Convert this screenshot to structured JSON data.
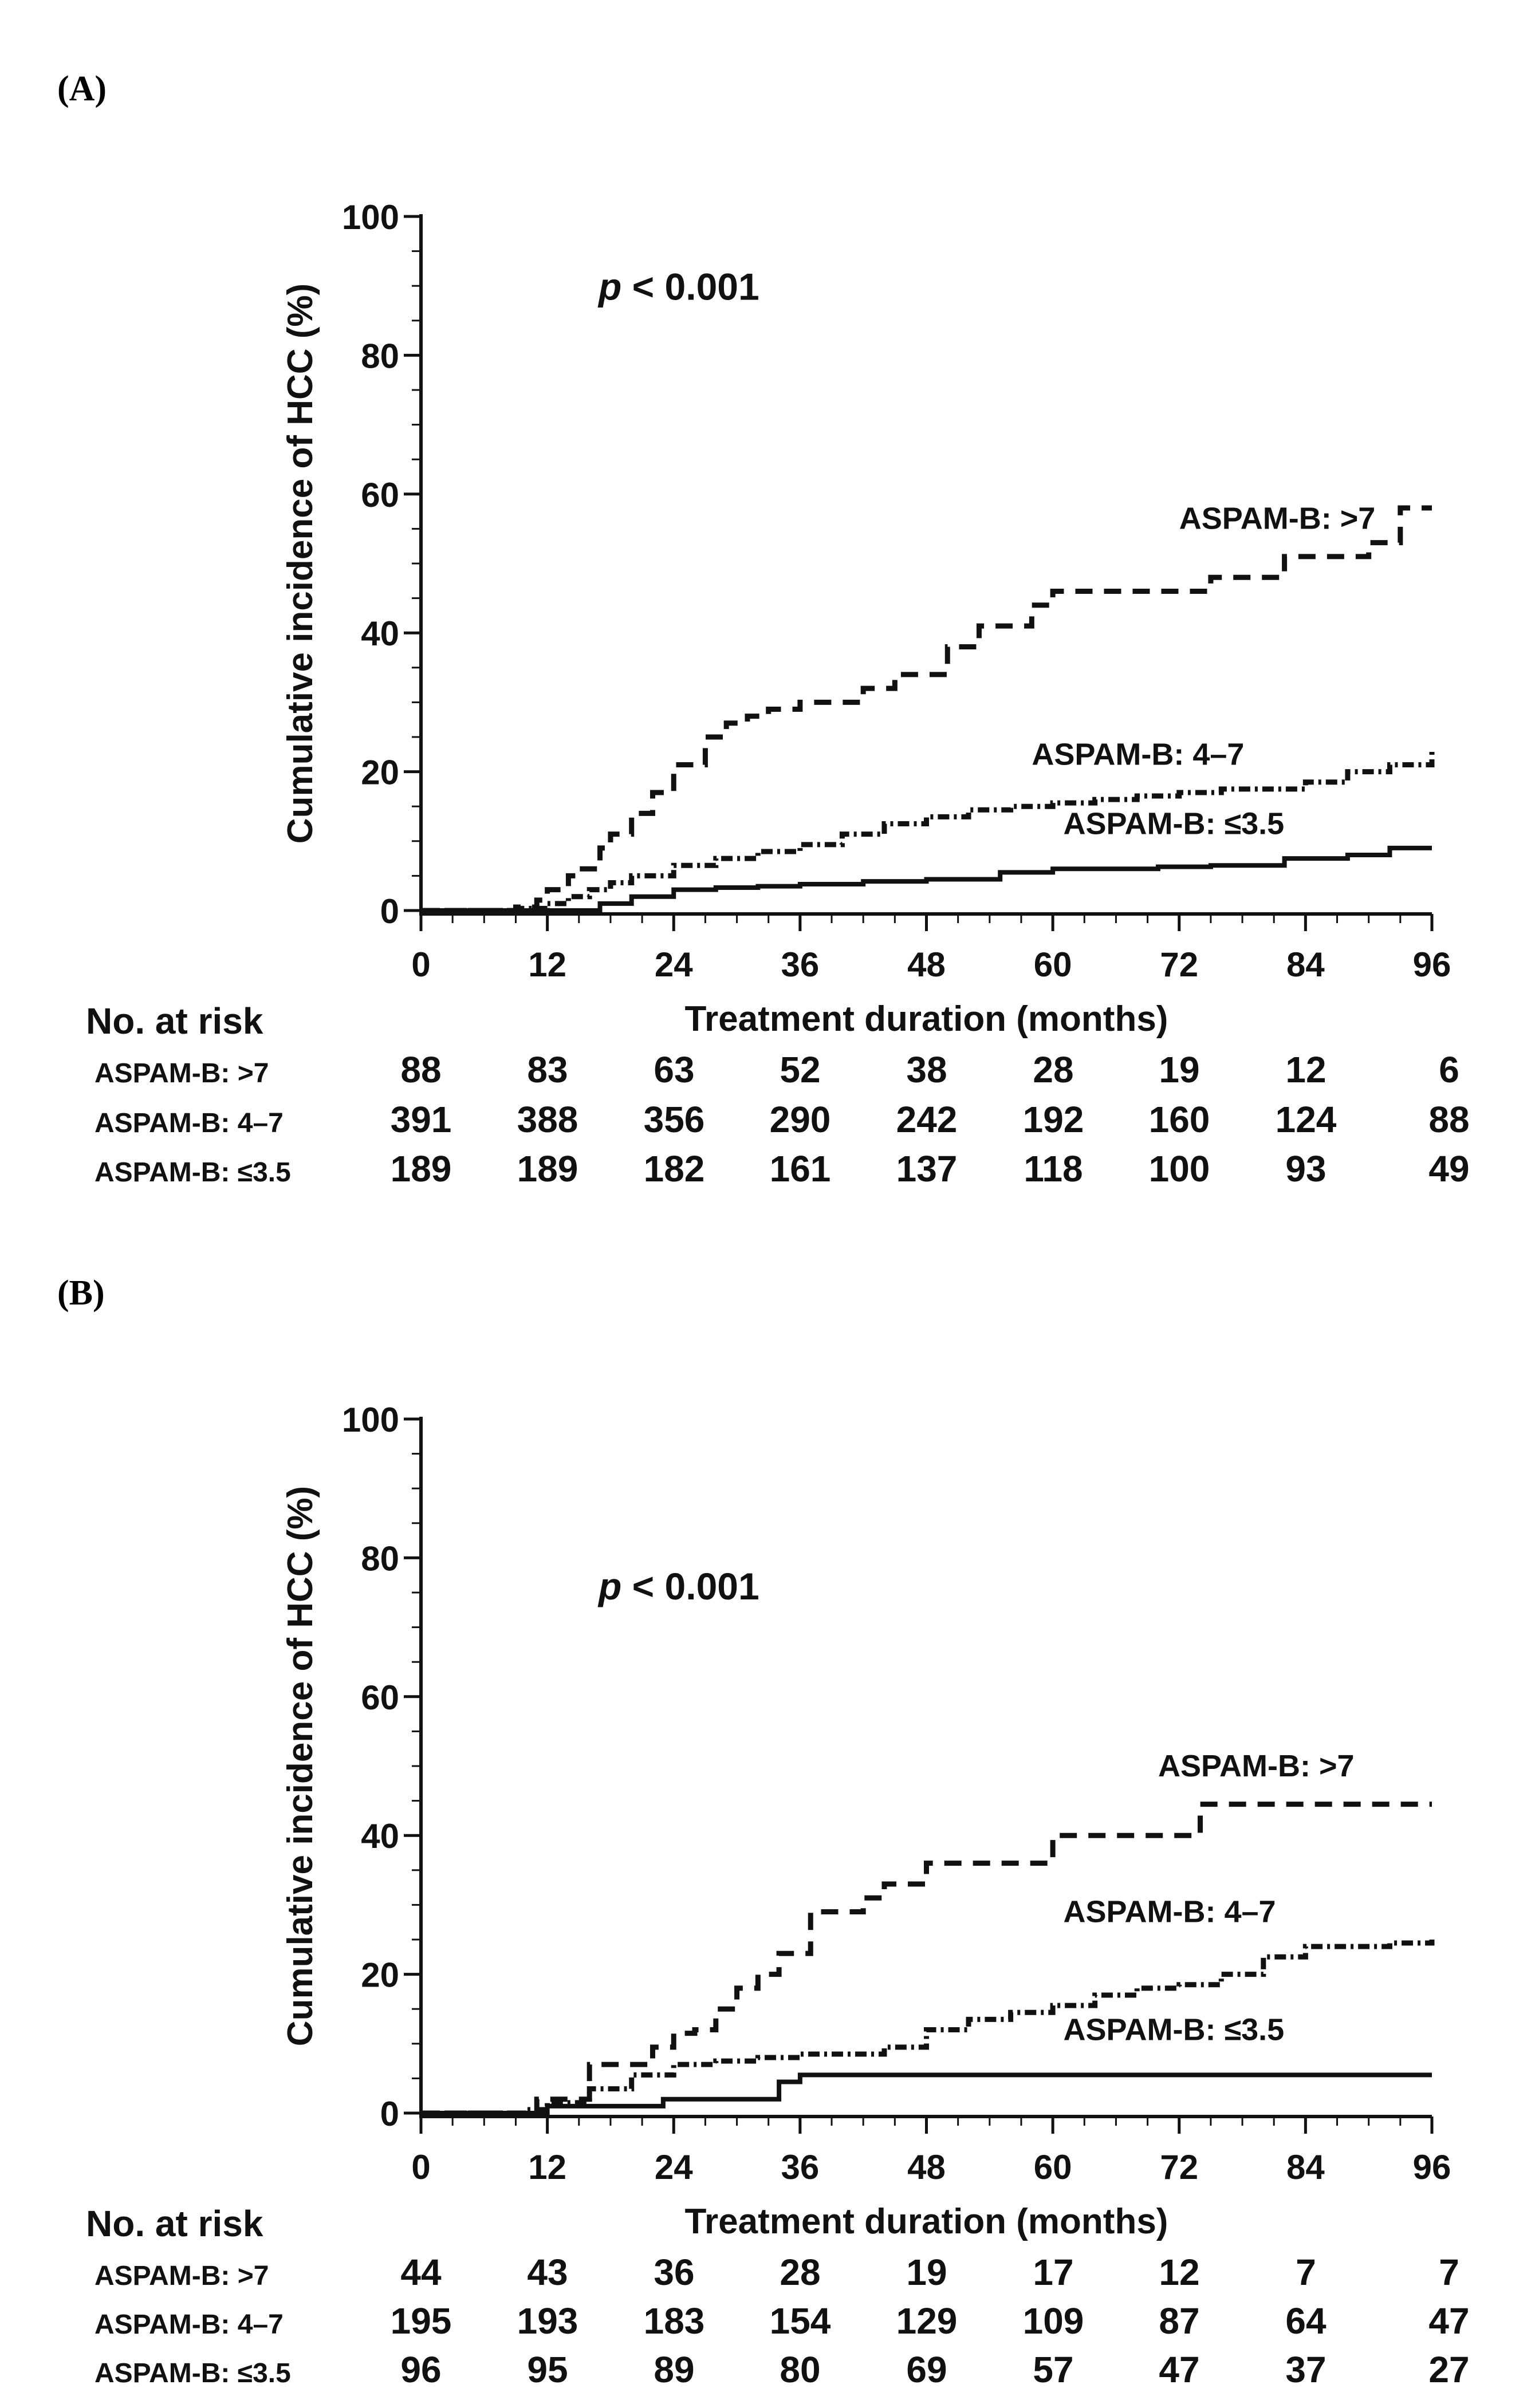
{
  "figure": {
    "panels": [
      "(A)",
      "(B)"
    ]
  },
  "chart_data": [
    {
      "panel": "(A)",
      "type": "line",
      "subtype": "kaplan-meier cumulative incidence",
      "annotation": "p < 0.001",
      "annotation_italic_part": "p",
      "annotation_rest": " < 0.001",
      "xlabel": "Treatment duration (months)",
      "ylabel": "Cumulative incidence of HCC (%)",
      "xlim": [
        0,
        96
      ],
      "ylim": [
        0,
        100
      ],
      "xticks": [
        0,
        12,
        24,
        36,
        48,
        60,
        72,
        84,
        96
      ],
      "yticks": [
        0,
        20,
        40,
        60,
        80,
        100
      ],
      "grid": false,
      "series": [
        {
          "name": "ASPAM-B: >7",
          "style": "dashed",
          "label_at": [
            72,
            55
          ],
          "x": [
            0,
            9,
            11,
            12,
            14,
            15,
            17,
            18,
            20,
            22,
            24,
            25,
            27,
            29,
            31,
            33,
            36,
            40,
            42,
            45,
            47,
            50,
            53,
            55,
            58,
            60,
            66,
            70,
            75,
            80,
            82,
            86,
            90,
            93,
            95,
            96
          ],
          "y": [
            0,
            0.5,
            1.5,
            3,
            5,
            6,
            9,
            11,
            14,
            17,
            21,
            21,
            25,
            27,
            28,
            29,
            30,
            30,
            32,
            34,
            34,
            38,
            41,
            41,
            44,
            46,
            46,
            46,
            48,
            48,
            51,
            51,
            53,
            58,
            58,
            58
          ]
        },
        {
          "name": "ASPAM-B: 4–7",
          "style": "dash-dot",
          "label_at": [
            58,
            21
          ],
          "x": [
            0,
            9,
            12,
            14,
            16,
            18,
            20,
            24,
            28,
            32,
            36,
            40,
            44,
            48,
            52,
            56,
            60,
            64,
            68,
            72,
            76,
            80,
            84,
            88,
            92,
            96
          ],
          "y": [
            0,
            0.3,
            1,
            2,
            3,
            4,
            5,
            6.5,
            7.5,
            8.5,
            9.5,
            11,
            12.5,
            13.5,
            14.5,
            15,
            15.5,
            16,
            16.5,
            17,
            17.5,
            17.5,
            18.5,
            20,
            21,
            23
          ]
        },
        {
          "name": "ASPAM-B: ≤3.5",
          "style": "solid",
          "label_at": [
            61,
            11
          ],
          "x": [
            0,
            16,
            17,
            20,
            24,
            28,
            32,
            36,
            42,
            48,
            55,
            60,
            66,
            70,
            75,
            82,
            88,
            92,
            96
          ],
          "y": [
            0,
            0,
            1,
            2,
            3,
            3.3,
            3.5,
            3.8,
            4.2,
            4.5,
            5.5,
            6,
            6,
            6.3,
            6.5,
            7.5,
            8,
            9,
            9
          ]
        }
      ],
      "risk_table": {
        "title": "No. at risk",
        "rows": [
          {
            "label": "ASPAM-B: >7",
            "values": [
              "88",
              "83",
              "63",
              "52",
              "38",
              "28",
              "19",
              "12",
              "6"
            ]
          },
          {
            "label": "ASPAM-B: 4–7",
            "values": [
              "391",
              "388",
              "356",
              "290",
              "242",
              "192",
              "160",
              "124",
              "88"
            ]
          },
          {
            "label": "ASPAM-B: ≤3.5",
            "values": [
              "189",
              "189",
              "182",
              "161",
              "137",
              "118",
              "100",
              "93",
              "49"
            ]
          }
        ]
      }
    },
    {
      "panel": "(B)",
      "type": "line",
      "subtype": "kaplan-meier cumulative incidence",
      "annotation": "p < 0.001",
      "annotation_italic_part": "p",
      "annotation_rest": " < 0.001",
      "xlabel": "Treatment duration (months)",
      "ylabel": "Cumulative incidence of HCC (%)",
      "xlim": [
        0,
        96
      ],
      "ylim": [
        0,
        100
      ],
      "xticks": [
        0,
        12,
        24,
        36,
        48,
        60,
        72,
        84,
        96
      ],
      "yticks": [
        0,
        20,
        40,
        60,
        80,
        100
      ],
      "grid": false,
      "series": [
        {
          "name": "ASPAM-B: >7",
          "style": "dashed",
          "label_at": [
            70,
            48.5
          ],
          "x": [
            0,
            11,
            14,
            16,
            20,
            22,
            24,
            26,
            28,
            30,
            32,
            34,
            35,
            37,
            38,
            40,
            42,
            44,
            48,
            52,
            56,
            60,
            66,
            70,
            72,
            74,
            80,
            84,
            96
          ],
          "y": [
            0,
            2,
            2,
            7,
            7,
            9.5,
            11.5,
            12,
            15,
            18,
            20,
            23,
            23,
            29,
            29,
            29,
            31,
            33,
            36,
            36,
            36,
            40,
            40,
            40,
            40,
            44.5,
            44.5,
            44.5,
            44.5
          ]
        },
        {
          "name": "ASPAM-B: 4–7",
          "style": "dash-dot",
          "label_at": [
            61,
            27.5
          ],
          "x": [
            0,
            10,
            12,
            16,
            20,
            24,
            28,
            32,
            36,
            40,
            44,
            48,
            52,
            56,
            60,
            64,
            68,
            72,
            76,
            80,
            84,
            88,
            92,
            96
          ],
          "y": [
            0,
            0.5,
            1.5,
            3.5,
            5.5,
            7,
            7.5,
            8,
            8.5,
            8.5,
            9.5,
            12,
            13.5,
            14.5,
            15.5,
            17,
            18,
            18.5,
            20,
            22.5,
            24,
            24,
            24.5,
            25
          ]
        },
        {
          "name": "ASPAM-B: ≤3.5",
          "style": "solid",
          "label_at": [
            61,
            10.5
          ],
          "x": [
            0,
            12,
            22,
            23,
            33,
            34,
            36,
            96
          ],
          "y": [
            0,
            1,
            1,
            2,
            2,
            4.5,
            5.5,
            5.5
          ]
        }
      ],
      "risk_table": {
        "title": "No. at risk",
        "rows": [
          {
            "label": "ASPAM-B: >7",
            "values": [
              "44",
              "43",
              "36",
              "28",
              "19",
              "17",
              "12",
              "7",
              "7"
            ]
          },
          {
            "label": "ASPAM-B: 4–7",
            "values": [
              "195",
              "193",
              "183",
              "154",
              "129",
              "109",
              "87",
              "64",
              "47"
            ]
          },
          {
            "label": "ASPAM-B: ≤3.5",
            "values": [
              "96",
              "95",
              "89",
              "80",
              "69",
              "57",
              "47",
              "37",
              "27"
            ]
          }
        ]
      }
    }
  ]
}
